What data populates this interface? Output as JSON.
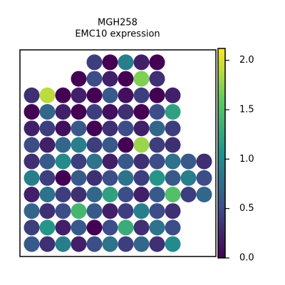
{
  "chart_data": {
    "type": "scatter",
    "title": "MGH258",
    "subtitle": "EMC10 expression",
    "xlim": [
      0,
      100
    ],
    "ylim": [
      0,
      100
    ],
    "colormap": "viridis",
    "x": [
      6,
      14,
      22,
      30,
      38,
      46,
      54,
      62,
      70,
      78,
      6,
      14,
      22,
      30,
      38,
      46,
      54,
      62,
      70,
      78,
      6,
      14,
      22,
      30,
      38,
      46,
      54,
      62,
      70,
      78,
      6,
      14,
      22,
      30,
      38,
      46,
      54,
      62,
      70,
      78,
      6,
      14,
      22,
      30,
      38,
      46,
      54,
      62,
      70,
      78,
      6,
      14,
      22,
      30,
      38,
      46,
      54,
      62,
      70,
      78,
      6,
      14,
      22,
      30,
      38,
      46,
      54,
      62,
      70,
      78,
      6,
      14,
      22,
      30,
      38,
      46,
      54,
      62,
      70,
      78,
      6,
      14,
      22,
      30,
      38,
      46,
      54,
      62,
      70,
      78,
      6,
      14,
      22,
      30,
      38,
      46,
      54,
      62,
      70,
      78,
      30,
      38,
      46,
      54,
      62,
      70,
      38,
      46,
      54,
      62,
      70,
      86,
      94,
      86,
      94,
      86,
      94
    ],
    "y": [
      6,
      6,
      6,
      6,
      6,
      6,
      6,
      6,
      6,
      6,
      14,
      14,
      14,
      14,
      14,
      14,
      14,
      14,
      14,
      14,
      22,
      22,
      22,
      22,
      22,
      22,
      22,
      22,
      22,
      22,
      30,
      30,
      30,
      30,
      30,
      30,
      30,
      30,
      30,
      30,
      38,
      38,
      38,
      38,
      38,
      38,
      38,
      38,
      38,
      38,
      46,
      46,
      46,
      46,
      46,
      46,
      46,
      46,
      46,
      46,
      54,
      54,
      54,
      54,
      54,
      54,
      54,
      54,
      54,
      54,
      62,
      62,
      62,
      62,
      62,
      62,
      62,
      62,
      62,
      62,
      70,
      70,
      70,
      70,
      70,
      70,
      70,
      70,
      70,
      70,
      78,
      78,
      78,
      78,
      78,
      78,
      78,
      78,
      78,
      78,
      86,
      86,
      86,
      86,
      86,
      86,
      94,
      94,
      94,
      94,
      94,
      30,
      30,
      38,
      38,
      46,
      46
    ],
    "values": [
      0.6,
      0.3,
      0.9,
      0.2,
      0.5,
      0.8,
      0.4,
      0.7,
      0.3,
      1.0,
      0.4,
      1.1,
      0.2,
      0.6,
      0.0,
      0.5,
      1.3,
      0.3,
      0.8,
      0.5,
      0.7,
      0.3,
      0.5,
      1.4,
      0.6,
      0.2,
      0.4,
      0.9,
      0.5,
      0.3,
      0.2,
      0.8,
      0.4,
      0.3,
      0.7,
      1.2,
      0.5,
      0.2,
      0.6,
      1.5,
      0.9,
      0.4,
      0.0,
      0.6,
      0.3,
      0.5,
      0.8,
      0.4,
      1.1,
      0.6,
      0.3,
      0.6,
      1.0,
      0.4,
      0.8,
      0.2,
      0.6,
      0.3,
      0.5,
      0.8,
      0.5,
      0.2,
      0.7,
      0.9,
      0.4,
      0.6,
      0.0,
      1.8,
      0.4,
      0.3,
      0.2,
      0.4,
      0.1,
      0.6,
      0.0,
      0.3,
      0.5,
      0.2,
      0.7,
      0.4,
      0.0,
      0.7,
      0.2,
      0.0,
      0.4,
      0.1,
      0.3,
      0.0,
      0.5,
      1.2,
      0.3,
      1.9,
      0.0,
      0.2,
      0.0,
      0.6,
      0.1,
      0.4,
      0.0,
      0.2,
      0.0,
      0.5,
      0.2,
      0.0,
      1.7,
      0.3,
      0.4,
      0.0,
      0.9,
      0.2,
      0.0,
      0.4,
      0.7,
      0.9,
      0.5,
      0.6,
      0.3
    ],
    "colorbar": {
      "lim": [
        0,
        2.12
      ],
      "ticks": [
        {
          "value": 0,
          "label": "0.0"
        },
        {
          "value": 0.5,
          "label": "0.5"
        },
        {
          "value": 1,
          "label": "1.0"
        },
        {
          "value": 1.5,
          "label": "1.5"
        },
        {
          "value": 2,
          "label": "2.0"
        }
      ]
    }
  }
}
